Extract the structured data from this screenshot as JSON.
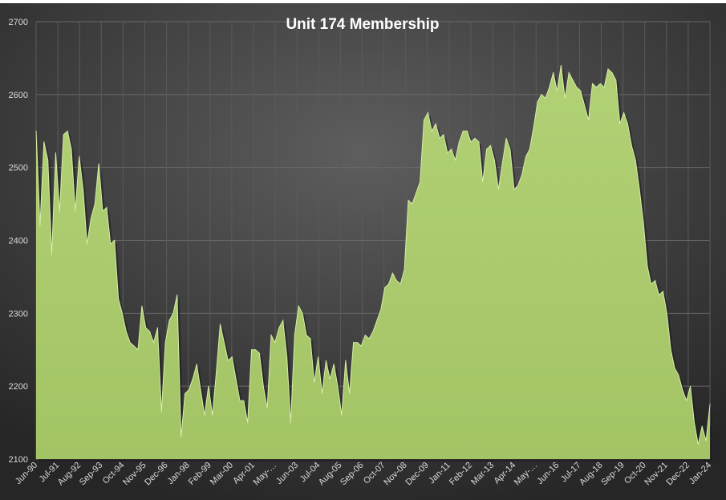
{
  "chart_data": {
    "type": "area",
    "title": "Unit 174 Membership",
    "xlabel": "",
    "ylabel": "",
    "ylim": [
      2100,
      2700
    ],
    "yticks": [
      2100,
      2200,
      2300,
      2400,
      2500,
      2600,
      2700
    ],
    "grid": true,
    "legend": "none",
    "x_tick_labels": [
      "Jun-90",
      "Jul-91",
      "Aug-92",
      "Sep-93",
      "Oct-94",
      "Nov-95",
      "Dec-96",
      "Jan-98",
      "Feb-99",
      "Mar-00",
      "Apr-01",
      "May-…",
      "Jun-03",
      "Jul-04",
      "Aug-05",
      "Sep-06",
      "Oct-07",
      "Nov-08",
      "Dec-09",
      "Jan-11",
      "Feb-12",
      "Mar-13",
      "Apr-14",
      "May-…",
      "Jun-16",
      "Jul-17",
      "Aug-18",
      "Sep-19",
      "Oct-20",
      "Nov-21",
      "Dec-22",
      "Jan-24"
    ],
    "series": [
      {
        "values": [
          2550,
          2420,
          2535,
          2510,
          2380,
          2520,
          2440,
          2545,
          2550,
          2525,
          2440,
          2515,
          2470,
          2395,
          2430,
          2450,
          2505,
          2440,
          2445,
          2395,
          2400,
          2320,
          2300,
          2275,
          2260,
          2255,
          2250,
          2310,
          2280,
          2275,
          2260,
          2280,
          2165,
          2260,
          2290,
          2300,
          2325,
          2130,
          2190,
          2195,
          2210,
          2230,
          2195,
          2160,
          2200,
          2160,
          2220,
          2285,
          2260,
          2235,
          2240,
          2210,
          2180,
          2180,
          2150,
          2250,
          2250,
          2245,
          2200,
          2170,
          2270,
          2260,
          2280,
          2290,
          2240,
          2150,
          2270,
          2310,
          2300,
          2270,
          2265,
          2205,
          2240,
          2190,
          2235,
          2210,
          2230,
          2200,
          2160,
          2235,
          2190,
          2260,
          2260,
          2255,
          2270,
          2265,
          2275,
          2290,
          2305,
          2335,
          2340,
          2355,
          2345,
          2340,
          2360,
          2455,
          2450,
          2465,
          2480,
          2565,
          2575,
          2550,
          2560,
          2540,
          2545,
          2520,
          2525,
          2510,
          2535,
          2550,
          2550,
          2535,
          2540,
          2535,
          2480,
          2525,
          2530,
          2510,
          2470,
          2505,
          2540,
          2525,
          2470,
          2475,
          2490,
          2515,
          2525,
          2555,
          2590,
          2600,
          2595,
          2610,
          2630,
          2605,
          2640,
          2595,
          2630,
          2620,
          2610,
          2605,
          2585,
          2565,
          2615,
          2610,
          2615,
          2610,
          2635,
          2630,
          2620,
          2560,
          2575,
          2560,
          2530,
          2510,
          2470,
          2425,
          2365,
          2340,
          2345,
          2325,
          2330,
          2300,
          2250,
          2225,
          2215,
          2195,
          2180,
          2200,
          2150,
          2120,
          2145,
          2125,
          2175
        ]
      }
    ]
  }
}
